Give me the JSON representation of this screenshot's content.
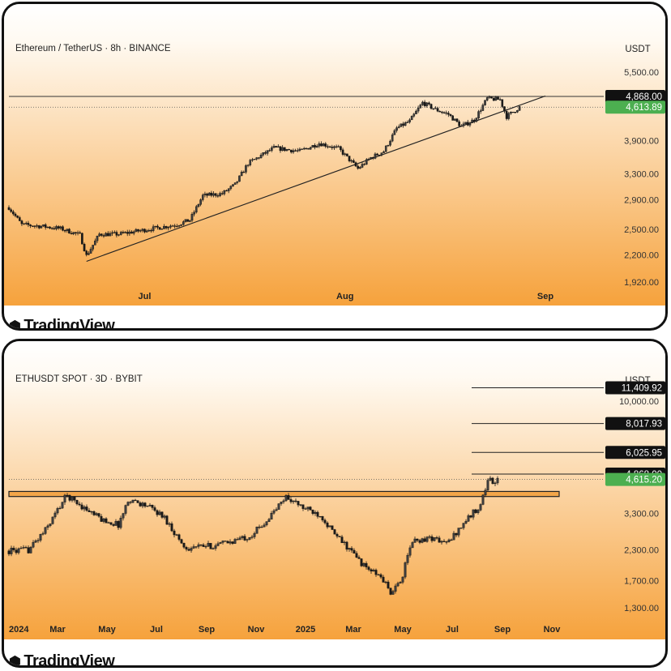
{
  "watermark": "TradingView",
  "colors": {
    "bg_top": "#ffffff",
    "bg_bottom": "#f6a23c",
    "candle_up": "#3d3d3d",
    "candle_down": "#1a1a1a",
    "last_price_bg": "#4caf50",
    "level_badge_bg": "#111111"
  },
  "chart_data": [
    {
      "type": "candlestick",
      "title": "Ethereum / TetherUS · 8h · BINANCE",
      "unit_label": "USDT",
      "y_scale": "log",
      "ylim": [
        1920,
        5500
      ],
      "y_ticks": [
        "5,500.00",
        "3,900.00",
        "3,300.00",
        "2,900.00",
        "2,500.00",
        "2,200.00",
        "1,920.00"
      ],
      "x_ticks": [
        "Jul",
        "Aug",
        "Sep"
      ],
      "close_path": [
        [
          "2025-06-10",
          2790
        ],
        [
          "2025-06-12",
          2560
        ],
        [
          "2025-06-15",
          2540
        ],
        [
          "2025-06-18",
          2510
        ],
        [
          "2025-06-21",
          2430
        ],
        [
          "2025-06-22",
          2190
        ],
        [
          "2025-06-24",
          2440
        ],
        [
          "2025-06-27",
          2440
        ],
        [
          "2025-06-30",
          2480
        ],
        [
          "2025-07-03",
          2520
        ],
        [
          "2025-07-06",
          2560
        ],
        [
          "2025-07-08",
          2620
        ],
        [
          "2025-07-10",
          2960
        ],
        [
          "2025-07-13",
          2990
        ],
        [
          "2025-07-15",
          3130
        ],
        [
          "2025-07-17",
          3480
        ],
        [
          "2025-07-19",
          3620
        ],
        [
          "2025-07-21",
          3760
        ],
        [
          "2025-07-25",
          3700
        ],
        [
          "2025-07-28",
          3850
        ],
        [
          "2025-07-31",
          3750
        ],
        [
          "2025-08-03",
          3390
        ],
        [
          "2025-08-05",
          3580
        ],
        [
          "2025-08-07",
          3700
        ],
        [
          "2025-08-09",
          4150
        ],
        [
          "2025-08-11",
          4300
        ],
        [
          "2025-08-13",
          4720
        ],
        [
          "2025-08-15",
          4560
        ],
        [
          "2025-08-17",
          4450
        ],
        [
          "2025-08-19",
          4190
        ],
        [
          "2025-08-21",
          4330
        ],
        [
          "2025-08-23",
          4820
        ],
        [
          "2025-08-25",
          4790
        ],
        [
          "2025-08-26",
          4400
        ],
        [
          "2025-08-28",
          4614
        ]
      ],
      "lines": [
        {
          "name": "resistance",
          "value": 4868
        },
        {
          "name": "trendline",
          "from": [
            "2025-06-22",
            2130
          ],
          "to": [
            "2025-09-01",
            4880
          ]
        }
      ],
      "price_labels": [
        {
          "text": "4,868.00",
          "value": 4868,
          "style": "dark"
        },
        {
          "text": "4,613.89",
          "value": 4613.89,
          "style": "green"
        }
      ]
    },
    {
      "type": "candlestick",
      "title": "ETHUSDT SPOT · 3D · BYBIT",
      "unit_label": "USDT",
      "y_scale": "log",
      "ylim": [
        1300,
        10000
      ],
      "y_ticks": [
        "10,000.00",
        "3,300.00",
        "2,300.00",
        "1,700.00",
        "1,300.00"
      ],
      "x_ticks": [
        "2024",
        "Mar",
        "May",
        "Jul",
        "Sep",
        "Nov",
        "2025",
        "Mar",
        "May",
        "Jul",
        "Sep",
        "Nov"
      ],
      "close_path": [
        [
          "2024-01-01",
          2280
        ],
        [
          "2024-01-25",
          2300
        ],
        [
          "2024-02-15",
          2800
        ],
        [
          "2024-03-12",
          3950
        ],
        [
          "2024-04-10",
          3350
        ],
        [
          "2024-04-25",
          3100
        ],
        [
          "2024-05-15",
          2950
        ],
        [
          "2024-05-28",
          3800
        ],
        [
          "2024-06-20",
          3550
        ],
        [
          "2024-07-10",
          3200
        ],
        [
          "2024-08-05",
          2350
        ],
        [
          "2024-09-10",
          2400
        ],
        [
          "2024-10-01",
          2500
        ],
        [
          "2024-10-25",
          2650
        ],
        [
          "2024-11-15",
          3100
        ],
        [
          "2024-12-08",
          3900
        ],
        [
          "2024-12-28",
          3500
        ],
        [
          "2025-01-20",
          3250
        ],
        [
          "2025-02-05",
          2700
        ],
        [
          "2025-02-25",
          2300
        ],
        [
          "2025-03-15",
          1950
        ],
        [
          "2025-04-05",
          1750
        ],
        [
          "2025-04-18",
          1480
        ],
        [
          "2025-05-01",
          1800
        ],
        [
          "2025-05-12",
          2500
        ],
        [
          "2025-06-05",
          2600
        ],
        [
          "2025-06-25",
          2450
        ],
        [
          "2025-07-15",
          3000
        ],
        [
          "2025-08-05",
          3600
        ],
        [
          "2025-08-15",
          4700
        ],
        [
          "2025-08-22",
          4400
        ],
        [
          "2025-08-28",
          4615
        ]
      ],
      "zone": {
        "low": 3900,
        "high": 4100,
        "from": "2024-01-01",
        "to": "2025-11-10"
      },
      "levels": [
        {
          "value": 11409.92,
          "from": "2025-07-25"
        },
        {
          "value": 8017.93,
          "from": "2025-07-25"
        },
        {
          "value": 6025.95,
          "from": "2025-07-25"
        },
        {
          "value": 4868,
          "from": "2025-07-25"
        }
      ],
      "price_labels": [
        {
          "text": "11,409.92",
          "value": 11409.92,
          "style": "dark"
        },
        {
          "text": "8,017.93",
          "value": 8017.93,
          "style": "dark"
        },
        {
          "text": "6,025.95",
          "value": 6025.95,
          "style": "dark"
        },
        {
          "text": "4,868.00",
          "value": 4868,
          "style": "dark"
        },
        {
          "text": "4,615.20",
          "value": 4615.2,
          "style": "green"
        }
      ]
    }
  ]
}
